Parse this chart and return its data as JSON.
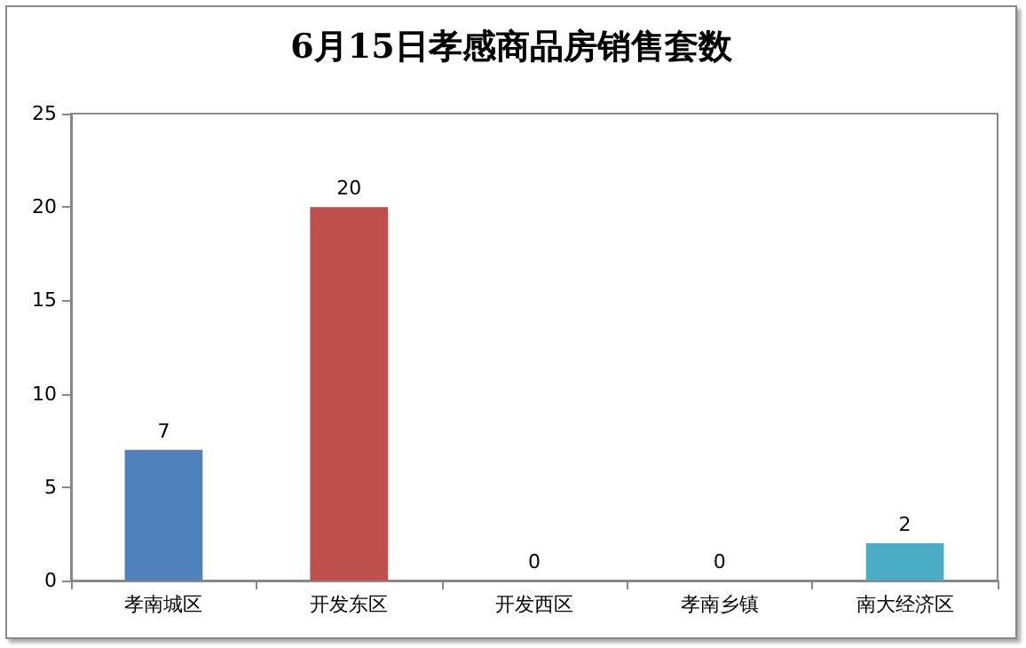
{
  "chart_data": {
    "type": "bar",
    "title": "6月15日孝感商品房销售套数",
    "categories": [
      "孝南城区",
      "开发东区",
      "开发西区",
      "孝南乡镇",
      "南大经济区"
    ],
    "values": [
      7,
      20,
      0,
      0,
      2
    ],
    "colors": [
      "#4f81bd",
      "#c0504d",
      "#9bbb59",
      "#8064a2",
      "#4bacc6"
    ],
    "ylim": [
      0,
      25
    ],
    "yticks": [
      0,
      5,
      10,
      15,
      20,
      25
    ],
    "grid": false,
    "data_labels": true
  }
}
